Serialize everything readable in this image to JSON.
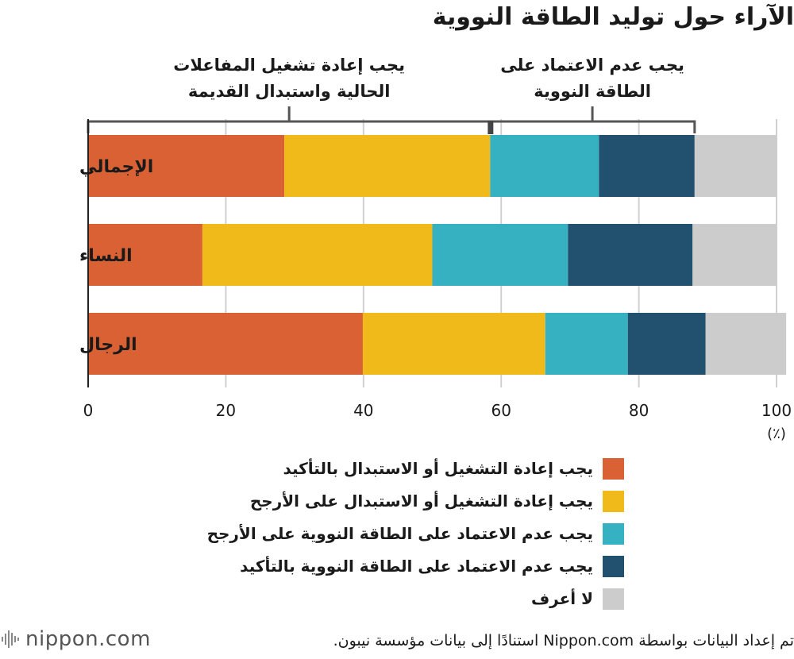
{
  "chart_data": {
    "type": "bar",
    "orientation": "horizontal",
    "stacked": true,
    "title": "الآراء حول توليد الطاقة النووية",
    "categories": [
      "الإجمالي",
      "النساء",
      "الرجال"
    ],
    "series": [
      {
        "name": "يجب إعادة التشغيل أو الاستبدال بالتأكيد",
        "color": "#DA6133",
        "values": [
          28.5,
          16.6,
          39.9
        ]
      },
      {
        "name": "يجب إعادة التشغيل أو الاستبدال على الأرجح",
        "color": "#F0BA1A",
        "values": [
          29.9,
          33.4,
          26.5
        ]
      },
      {
        "name": "يجب عدم الاعتماد على الطاقة النووية على الأرجح",
        "color": "#36B1C1",
        "values": [
          15.8,
          19.7,
          12.0
        ]
      },
      {
        "name": "يجب عدم الاعتماد على الطاقة النووية بالتأكيد",
        "color": "#22506F",
        "values": [
          13.9,
          18.1,
          11.3
        ]
      },
      {
        "name": "لا أعرف",
        "color": "#CCCCCC",
        "values": [
          11.9,
          12.2,
          11.7
        ]
      }
    ],
    "xlim": [
      0,
      100
    ],
    "xticks": [
      0,
      20,
      40,
      60,
      80,
      100
    ],
    "xlabel": "(٪)",
    "grid": true,
    "legend_position": "bottom",
    "annotations": [
      {
        "text": "يجب إعادة تشغيل المفاعلات الحالية واستبدال القديمة",
        "range": [
          0,
          58.4
        ]
      },
      {
        "text": "يجب عدم الاعتماد على الطاقة النووية",
        "range": [
          58.4,
          88.1
        ]
      }
    ]
  },
  "footer": {
    "logo": "nippon.com",
    "source": "تم إعداد البيانات بواسطة Nippon.com استنادًا إلى بيانات مؤسسة نيبون."
  }
}
